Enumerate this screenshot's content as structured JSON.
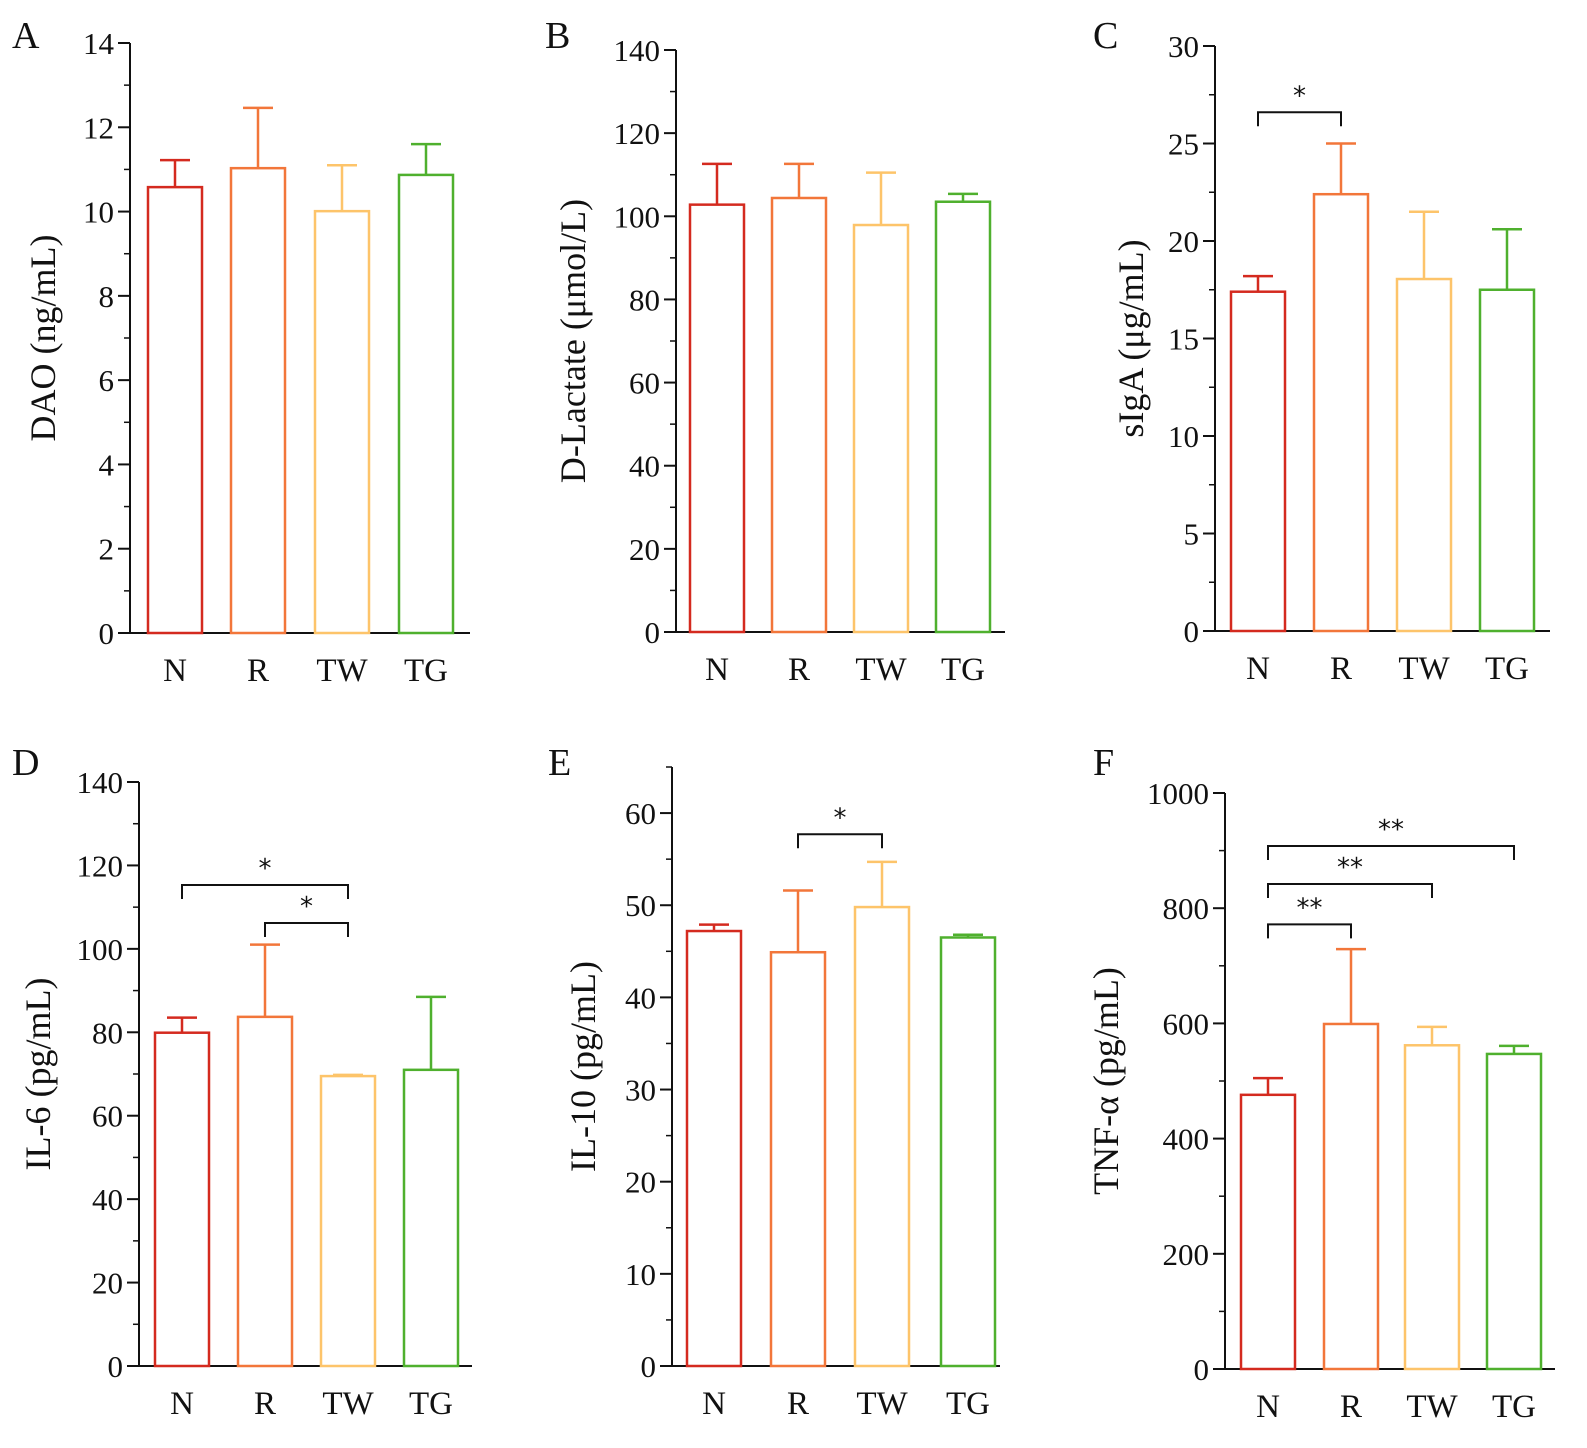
{
  "colors": {
    "N": "#d42a1f",
    "R": "#f2763a",
    "TW": "#fdc46a",
    "TG": "#4fb02e",
    "axis": "#111111"
  },
  "chart_data": [
    {
      "panel": "A",
      "type": "bar",
      "categories": [
        "N",
        "R",
        "TW",
        "TG"
      ],
      "values": [
        10.58,
        11.03,
        10.01,
        10.87
      ],
      "errors": [
        0.64,
        1.43,
        1.09,
        0.73
      ],
      "ylabel": "DAO (ng/mL)",
      "ylim": [
        0,
        14
      ],
      "yticks": [
        0,
        2,
        4,
        6,
        8,
        10,
        12,
        14
      ],
      "minor_step": 1,
      "significance": []
    },
    {
      "panel": "B",
      "type": "bar",
      "categories": [
        "N",
        "R",
        "TW",
        "TG"
      ],
      "values": [
        102.8,
        104.4,
        97.9,
        103.5
      ],
      "errors": [
        9.8,
        8.2,
        12.6,
        1.9
      ],
      "ylabel": "D-Lactate (μmol/L)",
      "ylim": [
        0,
        140
      ],
      "yticks": [
        0,
        20,
        40,
        60,
        80,
        100,
        120,
        140
      ],
      "minor_step": 10,
      "significance": []
    },
    {
      "panel": "C",
      "type": "bar",
      "categories": [
        "N",
        "R",
        "TW",
        "TG"
      ],
      "values": [
        17.4,
        22.4,
        18.05,
        17.5
      ],
      "errors": [
        0.8,
        2.6,
        3.45,
        3.1
      ],
      "ylabel": "sIgA (μg/mL)",
      "ylim": [
        0,
        30
      ],
      "yticks": [
        0,
        5,
        10,
        15,
        20,
        25,
        30
      ],
      "minor_step": 2.5,
      "significance": [
        {
          "from": 0,
          "to": 1,
          "y": 26.6,
          "label": "*"
        }
      ]
    },
    {
      "panel": "D",
      "type": "bar",
      "categories": [
        "N",
        "R",
        "TW",
        "TG"
      ],
      "values": [
        79.9,
        83.7,
        69.5,
        71.0
      ],
      "errors": [
        3.6,
        17.3,
        0.3,
        17.5
      ],
      "ylabel": "IL-6 (pg/mL)",
      "ylim": [
        0,
        140
      ],
      "yticks": [
        0,
        20,
        40,
        60,
        80,
        100,
        120,
        140
      ],
      "minor_step": 10,
      "significance": [
        {
          "from": 0,
          "to": 2,
          "y": 115.3,
          "label": "*"
        },
        {
          "from": 1,
          "to": 2,
          "y": 106.2,
          "label": "*"
        }
      ]
    },
    {
      "panel": "E",
      "type": "bar",
      "categories": [
        "N",
        "R",
        "TW",
        "TG"
      ],
      "values": [
        47.2,
        44.9,
        49.8,
        46.5
      ],
      "errors": [
        0.7,
        6.7,
        4.9,
        0.3
      ],
      "ylabel": "IL-10 (pg/mL)",
      "ylim": [
        0,
        65
      ],
      "yticks": [
        0,
        10,
        20,
        30,
        40,
        50,
        60
      ],
      "minor_step": 5,
      "significance": [
        {
          "from": 1,
          "to": 2,
          "y": 57.7,
          "label": "*"
        }
      ]
    },
    {
      "panel": "F",
      "type": "bar",
      "categories": [
        "N",
        "R",
        "TW",
        "TG"
      ],
      "values": [
        476,
        599,
        562,
        547
      ],
      "errors": [
        29,
        130,
        32,
        14
      ],
      "ylabel": "TNF-α (pg/mL)",
      "ylim": [
        0,
        1000
      ],
      "yticks": [
        0,
        200,
        400,
        600,
        800,
        1000
      ],
      "minor_step": 100,
      "significance": [
        {
          "from": 0,
          "to": 1,
          "y": 772,
          "label": "**"
        },
        {
          "from": 0,
          "to": 2,
          "y": 842,
          "label": "**"
        },
        {
          "from": 0,
          "to": 3,
          "y": 908,
          "label": "**"
        }
      ]
    }
  ]
}
